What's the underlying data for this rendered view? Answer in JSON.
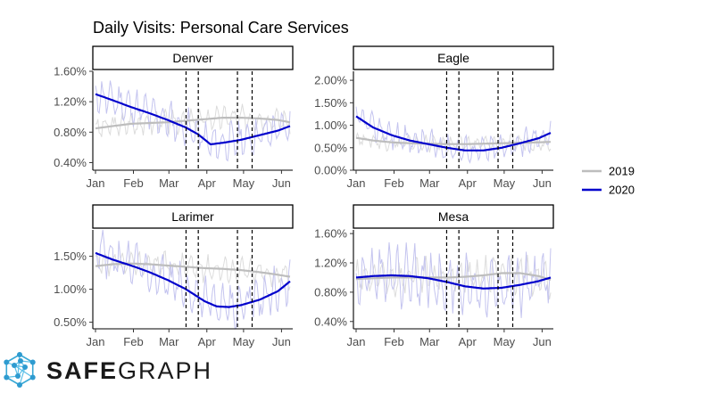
{
  "chart_data": {
    "type": "line",
    "title": "Daily Visits: Personal Care Services",
    "x_tick_labels": [
      "Jan",
      "Feb",
      "Mar",
      "Apr",
      "May",
      "Jun"
    ],
    "x_tick_positions": [
      1,
      32,
      61,
      92,
      122,
      153
    ],
    "x_range": [
      1,
      160
    ],
    "event_lines": [
      75,
      85,
      117,
      129
    ],
    "legend": [
      {
        "name": "2019",
        "color": "#bdbdbd"
      },
      {
        "name": "2020",
        "color": "#0000cc"
      }
    ],
    "panels": [
      {
        "title": "Denver",
        "ylim": [
          0.3,
          1.6
        ],
        "y_ticks": [
          0.4,
          0.8,
          1.2,
          1.6
        ],
        "y_tick_labels": [
          "0.40%",
          "0.80%",
          "1.20%",
          "1.60%"
        ],
        "smooth_2019": {
          "x": [
            1,
            15,
            30,
            45,
            60,
            75,
            90,
            105,
            120,
            135,
            150,
            160
          ],
          "y": [
            0.85,
            0.88,
            0.91,
            0.92,
            0.93,
            0.95,
            0.97,
            0.99,
            0.99,
            0.98,
            0.96,
            0.93
          ]
        },
        "smooth_2020": {
          "x": [
            1,
            15,
            30,
            45,
            60,
            75,
            85,
            95,
            105,
            120,
            135,
            150,
            160
          ],
          "y": [
            1.3,
            1.22,
            1.13,
            1.05,
            0.96,
            0.86,
            0.77,
            0.64,
            0.66,
            0.7,
            0.76,
            0.82,
            0.88
          ]
        },
        "daily_2019": {
          "base": 0.92,
          "amp": 0.18,
          "period": 7
        },
        "daily_2020": {
          "amp": 0.28,
          "period": 7
        }
      },
      {
        "title": "Eagle",
        "ylim": [
          0.0,
          2.2
        ],
        "y_ticks": [
          0.0,
          0.5,
          1.0,
          1.5,
          2.0
        ],
        "y_tick_labels": [
          "0.00%",
          "0.50%",
          "1.00%",
          "1.50%",
          "2.00%"
        ],
        "smooth_2019": {
          "x": [
            1,
            15,
            30,
            45,
            60,
            75,
            90,
            105,
            120,
            135,
            150,
            160
          ],
          "y": [
            0.72,
            0.66,
            0.62,
            0.6,
            0.59,
            0.58,
            0.58,
            0.59,
            0.6,
            0.61,
            0.62,
            0.63
          ]
        },
        "smooth_2020": {
          "x": [
            1,
            15,
            30,
            45,
            60,
            75,
            90,
            105,
            120,
            135,
            150,
            160
          ],
          "y": [
            1.2,
            0.95,
            0.78,
            0.66,
            0.58,
            0.5,
            0.44,
            0.44,
            0.5,
            0.6,
            0.71,
            0.83
          ]
        },
        "daily_2019": {
          "amp": 0.2,
          "period": 7
        },
        "daily_2020": {
          "amp": 0.35,
          "period": 7
        }
      },
      {
        "title": "Larimer",
        "ylim": [
          0.4,
          1.9
        ],
        "y_ticks": [
          0.5,
          1.0,
          1.5
        ],
        "y_tick_labels": [
          "0.50%",
          "1.00%",
          "1.50%"
        ],
        "smooth_2019": {
          "x": [
            1,
            15,
            30,
            45,
            60,
            75,
            90,
            105,
            120,
            135,
            150,
            160
          ],
          "y": [
            1.35,
            1.38,
            1.39,
            1.38,
            1.36,
            1.34,
            1.32,
            1.31,
            1.29,
            1.26,
            1.22,
            1.19
          ]
        },
        "smooth_2020": {
          "x": [
            1,
            15,
            30,
            45,
            60,
            75,
            90,
            100,
            110,
            120,
            135,
            150,
            160
          ],
          "y": [
            1.55,
            1.45,
            1.36,
            1.26,
            1.14,
            1.0,
            0.82,
            0.74,
            0.73,
            0.76,
            0.84,
            0.97,
            1.12
          ]
        },
        "daily_2019": {
          "amp": 0.22,
          "period": 7
        },
        "daily_2020": {
          "amp": 0.4,
          "period": 7
        }
      },
      {
        "title": "Mesa",
        "ylim": [
          0.3,
          1.65
        ],
        "y_ticks": [
          0.4,
          0.8,
          1.2,
          1.6
        ],
        "y_tick_labels": [
          "0.40%",
          "0.80%",
          "1.20%",
          "1.60%"
        ],
        "smooth_2019": {
          "x": [
            1,
            15,
            30,
            45,
            60,
            75,
            90,
            105,
            120,
            135,
            150,
            160
          ],
          "y": [
            0.98,
            0.99,
            1.0,
            1.0,
            1.0,
            1.0,
            1.01,
            1.03,
            1.06,
            1.06,
            1.02,
            0.97
          ]
        },
        "smooth_2020": {
          "x": [
            1,
            15,
            30,
            45,
            60,
            75,
            90,
            105,
            120,
            135,
            150,
            160
          ],
          "y": [
            1.0,
            1.02,
            1.03,
            1.02,
            0.99,
            0.94,
            0.88,
            0.85,
            0.86,
            0.9,
            0.95,
            1.0
          ]
        },
        "daily_2019": {
          "amp": 0.3,
          "period": 7
        },
        "daily_2020": {
          "amp": 0.45,
          "period": 7
        }
      }
    ]
  },
  "brand": {
    "part1": "SAFE",
    "part2": "GRAPH"
  }
}
